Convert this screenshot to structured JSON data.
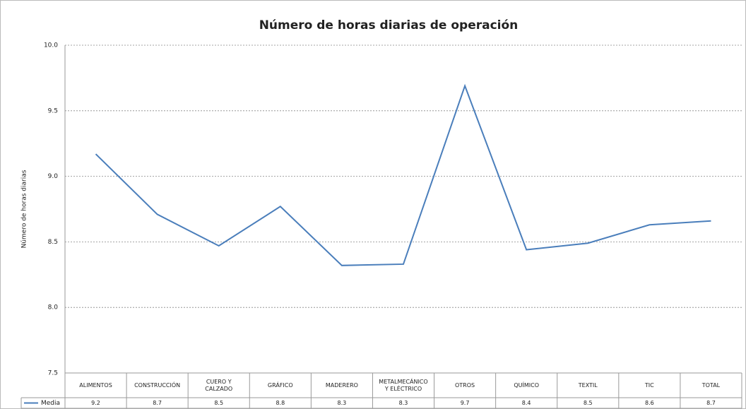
{
  "chart_data": {
    "type": "line",
    "title": "Número de horas diarias de operación",
    "ylabel": "Número de horas diarias",
    "categories": [
      "ALIMENTOS",
      "CONSTRUCCIÓN",
      "CUERO Y CALZADO",
      "GRÁFICO",
      "MADERERO",
      "METALMECÁNICO Y ELÉCTRICO",
      "OTROS",
      "QUÍMICO",
      "TEXTIL",
      "TIC",
      "TOTAL"
    ],
    "series": [
      {
        "name": "Media",
        "color": "#4a7ebb",
        "values": [
          9.17,
          8.71,
          8.47,
          8.77,
          8.32,
          8.33,
          9.69,
          8.44,
          8.49,
          8.63,
          8.66
        ],
        "value_labels": [
          "9.2",
          "8.7",
          "8.5",
          "8.8",
          "8.3",
          "8.3",
          "9.7",
          "8.4",
          "8.5",
          "8.6",
          "8.7"
        ]
      }
    ],
    "ylim": [
      7.5,
      10
    ],
    "yticks": [
      7.5,
      {
        "value": 8,
        "label": "8.0"
      },
      8.5,
      {
        "value": 9,
        "label": "9.0"
      },
      9.5,
      {
        "value": 10,
        "label": "10.0"
      }
    ],
    "grid": true
  }
}
